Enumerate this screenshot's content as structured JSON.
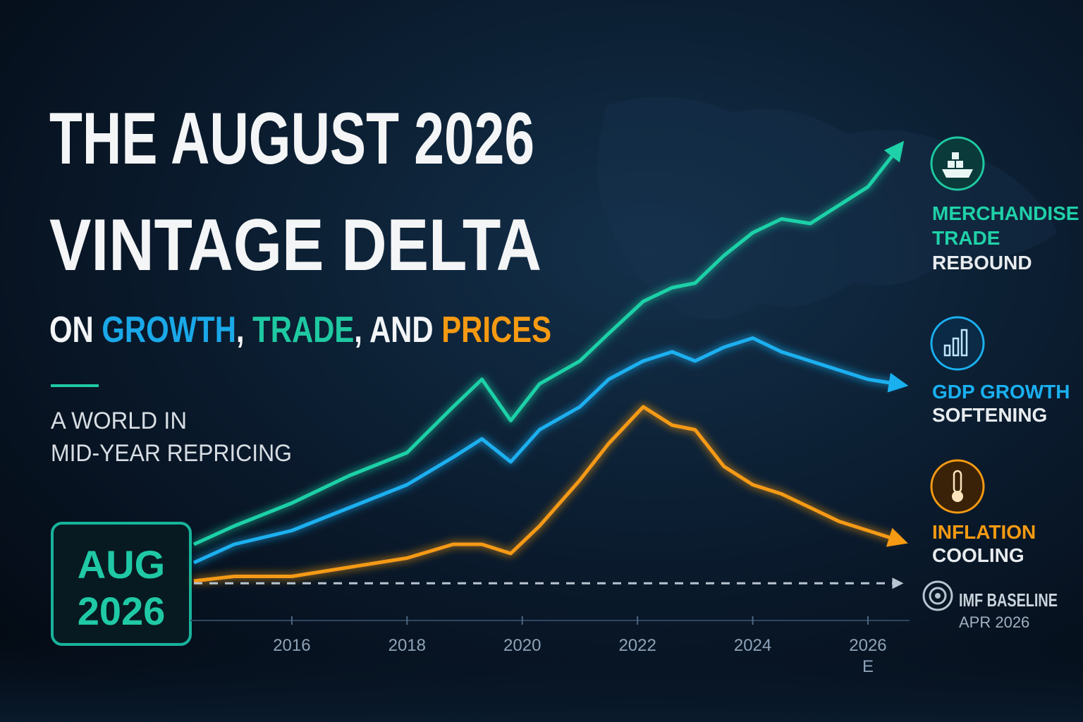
{
  "chart_data": {
    "type": "line",
    "title_lines": [
      "THE AUGUST 2026",
      "VINTAGE DELTA"
    ],
    "subtitle_parts": [
      {
        "text": "ON ",
        "color": "#f2f4f6"
      },
      {
        "text": "GROWTH",
        "color": "#1aa8e8"
      },
      {
        "text": ", ",
        "color": "#f2f4f6"
      },
      {
        "text": "TRADE",
        "color": "#1fc9a2"
      },
      {
        "text": ", AND ",
        "color": "#f2f4f6"
      },
      {
        "text": "PRICES",
        "color": "#f59a12"
      }
    ],
    "tagline_lines": [
      "A WORLD IN",
      "MID-YEAR REPRICING"
    ],
    "badge_lines": [
      "AUG",
      "2026"
    ],
    "x": [
      2014.3,
      2015,
      2016,
      2017,
      2018,
      2018.8,
      2019.3,
      2019.8,
      2020.3,
      2021,
      2021.5,
      2022.1,
      2022.6,
      2023,
      2023.5,
      2024,
      2024.5,
      2025,
      2025.5,
      2026,
      2026.5
    ],
    "xlim": [
      2014.3,
      2026.6
    ],
    "xticks": [
      2016,
      2018,
      2020,
      2022,
      2024,
      2026
    ],
    "estimate_marker": "E",
    "ylim": [
      0,
      100
    ],
    "series": [
      {
        "name": "MERCHANDISE TRADE",
        "status": "REBOUND",
        "color": "#1fd1a8",
        "values": [
          12,
          16,
          21,
          27,
          32,
          42,
          48,
          39,
          47,
          52,
          58,
          65,
          68,
          69,
          75,
          80,
          83,
          82,
          86,
          90,
          98
        ]
      },
      {
        "name": "GDP GROWTH",
        "status": "SOFTENING",
        "color": "#1ab0f0",
        "values": [
          8,
          12,
          15,
          20,
          25,
          31,
          35,
          30,
          37,
          42,
          48,
          52,
          54,
          52,
          55,
          57,
          54,
          52,
          50,
          48,
          47
        ]
      },
      {
        "name": "INFLATION",
        "status": "COOLING",
        "color": "#f59a12",
        "values": [
          4,
          5,
          5,
          7,
          9,
          12,
          12,
          10,
          16,
          26,
          34,
          42,
          38,
          37,
          29,
          25,
          23,
          20,
          17,
          15,
          13
        ]
      },
      {
        "name": "IMF BASELINE",
        "status": "APR 2026",
        "color": "#b8c4d0",
        "dashed": true,
        "values": [
          3.5,
          3.5,
          3.5,
          3.5,
          3.5,
          3.5,
          3.5,
          3.5,
          3.5,
          3.5,
          3.5,
          3.5,
          3.5,
          3.5,
          3.5,
          3.5,
          3.5,
          3.5,
          3.5,
          3.5,
          3.5
        ]
      }
    ]
  }
}
